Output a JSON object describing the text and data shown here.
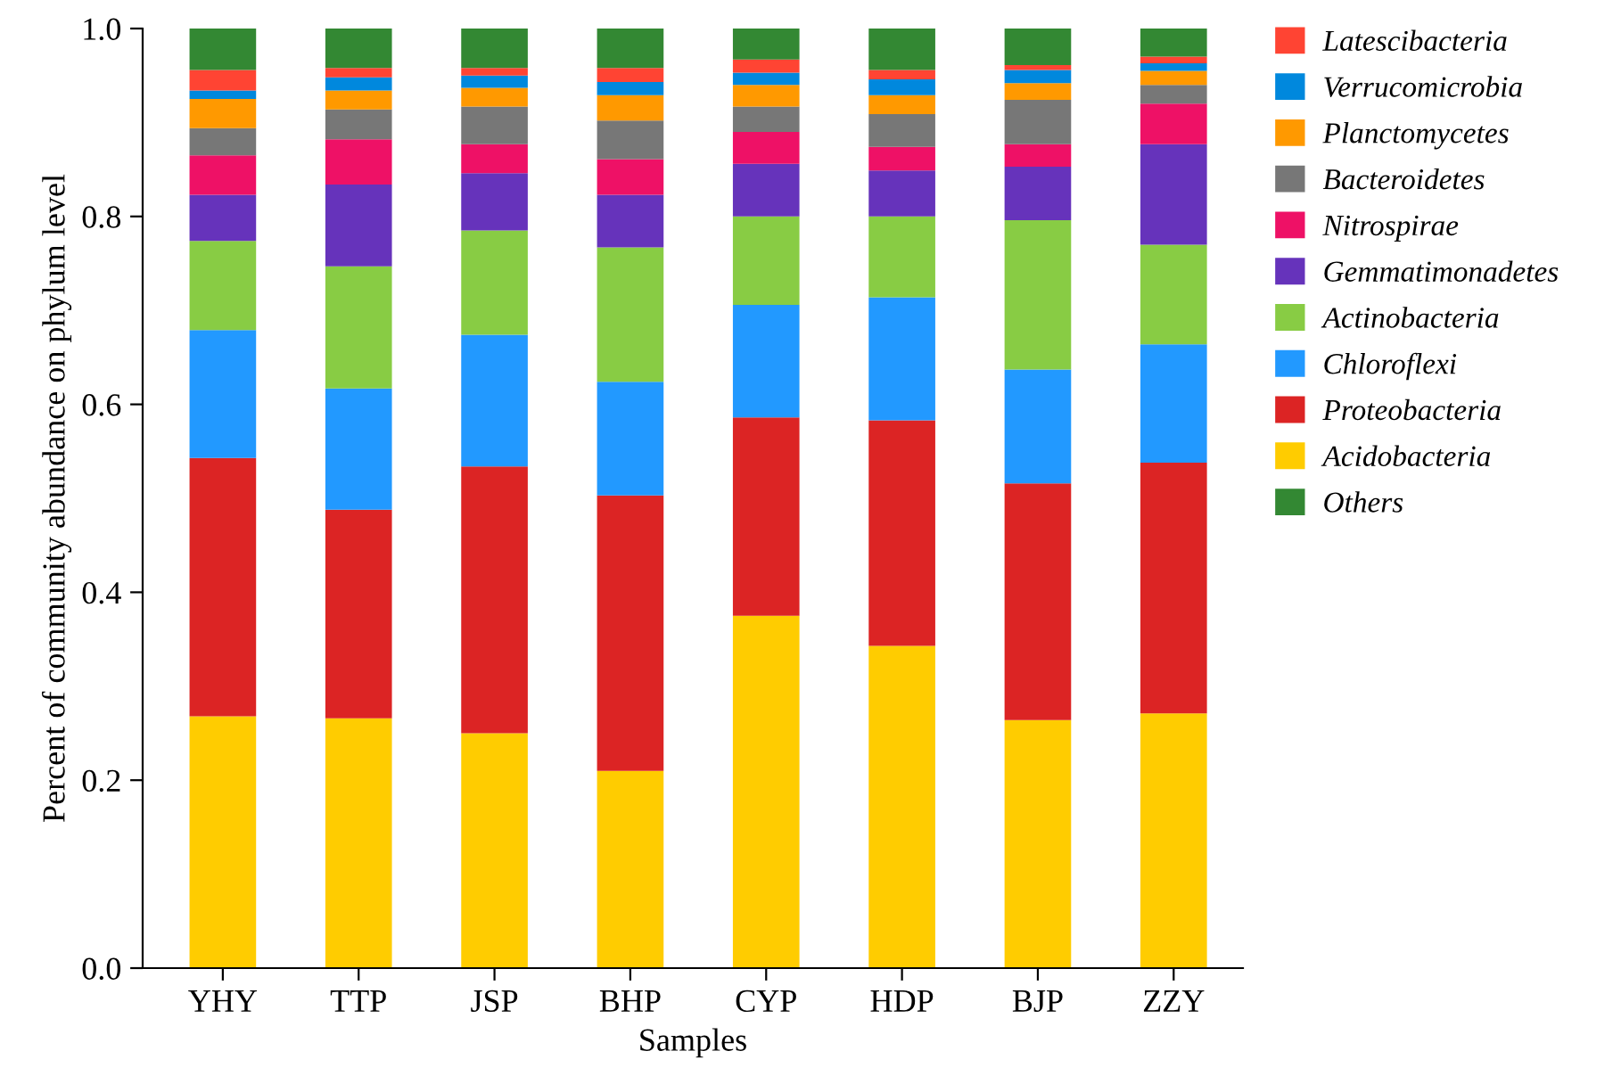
{
  "chart_data": {
    "type": "bar",
    "stacked": true,
    "xlabel": "Samples",
    "ylabel": "Percent of community abundance on phylum level",
    "categories": [
      "YHY",
      "TTP",
      "JSP",
      "BHP",
      "CYP",
      "HDP",
      "BJP",
      "ZZY"
    ],
    "ylim": [
      0,
      1.0
    ],
    "yticks": [
      {
        "value": 0,
        "label": "0.0"
      },
      {
        "value": 0.2,
        "label": "0.2"
      },
      {
        "value": 0.4,
        "label": "0.4"
      },
      {
        "value": 0.6,
        "label": "0.6"
      },
      {
        "value": 0.8,
        "label": "0.8"
      },
      {
        "value": 1.0,
        "label": "1.0"
      }
    ],
    "grid": false,
    "legend": "right",
    "series": [
      {
        "name": "Acidobacteria",
        "color": "#ffcc00",
        "values": [
          0.268,
          0.266,
          0.25,
          0.21,
          0.375,
          0.343,
          0.264,
          0.271
        ]
      },
      {
        "name": "Proteobacteria",
        "color": "#dc2424",
        "values": [
          0.275,
          0.222,
          0.284,
          0.293,
          0.211,
          0.24,
          0.252,
          0.267
        ]
      },
      {
        "name": "Chloroflexi",
        "color": "#2299ff",
        "values": [
          0.136,
          0.129,
          0.14,
          0.121,
          0.12,
          0.131,
          0.121,
          0.126
        ]
      },
      {
        "name": "Actinobacteria",
        "color": "#88cc44",
        "values": [
          0.095,
          0.13,
          0.111,
          0.143,
          0.094,
          0.086,
          0.159,
          0.106
        ]
      },
      {
        "name": "Gemmatimonadetes",
        "color": "#6633bb",
        "values": [
          0.049,
          0.087,
          0.061,
          0.056,
          0.056,
          0.049,
          0.057,
          0.107
        ]
      },
      {
        "name": "Nitrospirae",
        "color": "#ee1166",
        "values": [
          0.042,
          0.048,
          0.031,
          0.038,
          0.034,
          0.025,
          0.024,
          0.043
        ]
      },
      {
        "name": "Bacteroidetes",
        "color": "#777777",
        "values": [
          0.029,
          0.032,
          0.04,
          0.041,
          0.027,
          0.035,
          0.047,
          0.02
        ]
      },
      {
        "name": "Planctomycetes",
        "color": "#ff9900",
        "values": [
          0.031,
          0.02,
          0.02,
          0.027,
          0.023,
          0.02,
          0.018,
          0.015
        ]
      },
      {
        "name": "Verrucomicrobia",
        "color": "#0088dd",
        "values": [
          0.009,
          0.014,
          0.013,
          0.014,
          0.013,
          0.017,
          0.014,
          0.008
        ]
      },
      {
        "name": "Latescibacteria",
        "color": "#ff4433",
        "values": [
          0.022,
          0.01,
          0.008,
          0.015,
          0.014,
          0.01,
          0.005,
          0.007
        ]
      },
      {
        "name": "Others",
        "color": "#338833",
        "values": [
          0.044,
          0.042,
          0.042,
          0.042,
          0.033,
          0.044,
          0.039,
          0.03
        ]
      }
    ]
  }
}
